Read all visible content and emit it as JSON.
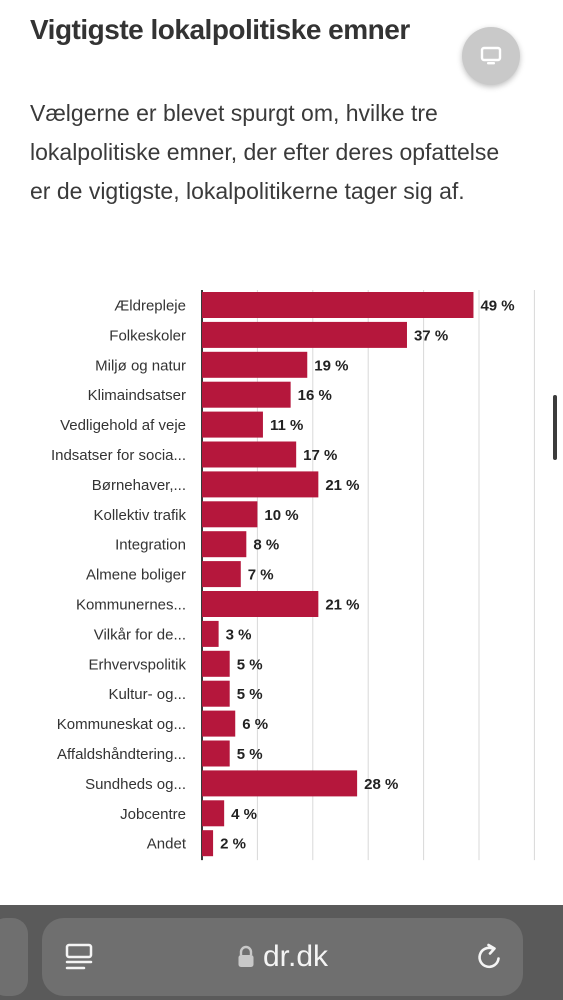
{
  "page": {
    "title": "Vigtigste lokalpolitiske emner",
    "description": "Vælgerne er blevet spurgt om, hvilke tre lokalpolitiske emner, der efter deres opfattelse er de vigtigste, lokalpolitikerne tager sig af."
  },
  "fab": {
    "icon": "monitor-icon"
  },
  "chart_data": {
    "type": "bar",
    "orientation": "horizontal",
    "title": "",
    "xlabel": "",
    "ylabel": "",
    "xlim": [
      0,
      60
    ],
    "grid": true,
    "value_suffix": " %",
    "bar_color": "#b5173c",
    "categories": [
      "Ældrepleje",
      "Folkeskoler",
      "Miljø og natur",
      "Klimaindsatser",
      "Vedligehold af veje",
      "Indsatser for socia...",
      "Børnehaver,...",
      "Kollektiv trafik",
      "Integration",
      "Almene boliger",
      "Kommunernes...",
      "Vilkår for de...",
      "Erhvervspolitik",
      "Kultur- og...",
      "Kommuneskat og...",
      "Affaldshåndtering...",
      "Sundheds og...",
      "Jobcentre",
      "Andet"
    ],
    "values": [
      49,
      37,
      19,
      16,
      11,
      17,
      21,
      10,
      8,
      7,
      21,
      3,
      5,
      5,
      6,
      5,
      28,
      4,
      2
    ]
  },
  "browser": {
    "url": "dr.dk",
    "icons": [
      "reader-icon",
      "lock-icon",
      "reload-icon"
    ]
  }
}
